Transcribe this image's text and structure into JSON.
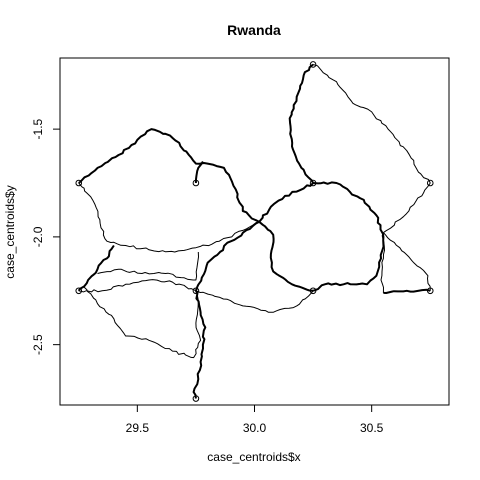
{
  "chart_data": {
    "type": "line",
    "title": "Rwanda",
    "xlabel": "case_centroids$x",
    "ylabel": "case_centroids$y",
    "xlim": [
      29.17,
      30.83
    ],
    "ylim": [
      -2.78,
      -1.17
    ],
    "x_ticks": [
      29.5,
      30.0,
      30.5
    ],
    "x_tick_labels": [
      "29.5",
      "30.0",
      "30.5"
    ],
    "y_ticks": [
      -1.5,
      -2.0,
      -2.5
    ],
    "y_tick_labels": [
      "-1.5",
      "-2.0",
      "-2.5"
    ],
    "grid": false,
    "legend": "none",
    "points": [
      {
        "x": 29.25,
        "y": -1.75
      },
      {
        "x": 29.75,
        "y": -1.75
      },
      {
        "x": 30.25,
        "y": -1.2
      },
      {
        "x": 30.25,
        "y": -1.75
      },
      {
        "x": 30.75,
        "y": -1.75
      },
      {
        "x": 29.25,
        "y": -2.25
      },
      {
        "x": 29.75,
        "y": -2.25
      },
      {
        "x": 30.25,
        "y": -2.25
      },
      {
        "x": 30.75,
        "y": -2.25
      },
      {
        "x": 29.75,
        "y": -2.75
      }
    ],
    "series": [
      {
        "path": [
          [
            29.25,
            -1.75
          ],
          [
            29.33,
            -1.68
          ],
          [
            29.42,
            -1.62
          ],
          [
            29.5,
            -1.55
          ],
          [
            29.56,
            -1.5
          ],
          [
            29.64,
            -1.53
          ],
          [
            29.72,
            -1.62
          ],
          [
            29.75,
            -1.66
          ],
          [
            29.8,
            -1.66
          ],
          [
            29.87,
            -1.68
          ],
          [
            29.92,
            -1.78
          ],
          [
            29.95,
            -1.88
          ],
          [
            30.02,
            -1.93
          ]
        ],
        "bold": true
      },
      {
        "path": [
          [
            29.25,
            -1.75
          ],
          [
            29.31,
            -1.83
          ],
          [
            29.34,
            -1.92
          ],
          [
            29.37,
            -2.02
          ],
          [
            29.45,
            -2.04
          ],
          [
            29.55,
            -2.06
          ],
          [
            29.66,
            -2.07
          ],
          [
            29.75,
            -2.05
          ],
          [
            29.85,
            -2.02
          ],
          [
            29.95,
            -1.97
          ],
          [
            30.02,
            -1.93
          ]
        ],
        "bold": false
      },
      {
        "path": [
          [
            29.75,
            -1.75
          ],
          [
            29.76,
            -1.68
          ],
          [
            29.78,
            -1.65
          ]
        ],
        "bold": true
      },
      {
        "path": [
          [
            29.25,
            -2.25
          ],
          [
            29.29,
            -2.2
          ],
          [
            29.33,
            -2.15
          ],
          [
            29.37,
            -2.1
          ],
          [
            29.4,
            -2.04
          ]
        ],
        "bold": true
      },
      {
        "path": [
          [
            29.33,
            -2.17
          ],
          [
            29.42,
            -2.15
          ],
          [
            29.52,
            -2.17
          ],
          [
            29.62,
            -2.17
          ],
          [
            29.7,
            -2.19
          ],
          [
            29.75,
            -2.2
          ],
          [
            29.76,
            -2.07
          ]
        ],
        "bold": false
      },
      {
        "path": [
          [
            29.25,
            -2.25
          ],
          [
            29.35,
            -2.25
          ],
          [
            29.45,
            -2.22
          ],
          [
            29.55,
            -2.2
          ],
          [
            29.65,
            -2.21
          ],
          [
            29.75,
            -2.25
          ]
        ],
        "bold": false
      },
      {
        "path": [
          [
            29.27,
            -2.23
          ],
          [
            29.33,
            -2.31
          ],
          [
            29.4,
            -2.38
          ],
          [
            29.45,
            -2.46
          ],
          [
            29.55,
            -2.48
          ],
          [
            29.65,
            -2.53
          ],
          [
            29.74,
            -2.56
          ],
          [
            29.77,
            -2.48
          ],
          [
            29.75,
            -2.4
          ],
          [
            29.76,
            -2.3
          ],
          [
            29.75,
            -2.25
          ]
        ],
        "bold": false
      },
      {
        "path": [
          [
            29.75,
            -2.25
          ],
          [
            29.77,
            -2.35
          ],
          [
            29.79,
            -2.42
          ],
          [
            29.78,
            -2.5
          ],
          [
            29.77,
            -2.58
          ],
          [
            29.76,
            -2.66
          ],
          [
            29.74,
            -2.72
          ],
          [
            29.75,
            -2.75
          ]
        ],
        "bold": true
      },
      {
        "path": [
          [
            29.75,
            -2.25
          ],
          [
            29.8,
            -2.12
          ],
          [
            29.9,
            -2.02
          ],
          [
            30.02,
            -1.93
          ]
        ],
        "bold": true
      },
      {
        "path": [
          [
            29.75,
            -2.25
          ],
          [
            29.85,
            -2.28
          ],
          [
            29.95,
            -2.32
          ],
          [
            30.08,
            -2.35
          ],
          [
            30.18,
            -2.32
          ],
          [
            30.25,
            -2.25
          ]
        ],
        "bold": false
      },
      {
        "path": [
          [
            30.02,
            -1.93
          ],
          [
            30.07,
            -1.86
          ],
          [
            30.13,
            -1.81
          ],
          [
            30.18,
            -1.79
          ],
          [
            30.25,
            -1.75
          ]
        ],
        "bold": true
      },
      {
        "path": [
          [
            30.02,
            -1.93
          ],
          [
            30.08,
            -1.99
          ],
          [
            30.07,
            -2.08
          ],
          [
            30.08,
            -2.16
          ],
          [
            30.16,
            -2.22
          ],
          [
            30.25,
            -2.25
          ]
        ],
        "bold": true
      },
      {
        "path": [
          [
            30.25,
            -1.75
          ],
          [
            30.35,
            -1.75
          ],
          [
            30.45,
            -1.82
          ],
          [
            30.52,
            -1.9
          ],
          [
            30.55,
            -2.0
          ],
          [
            30.54,
            -2.1
          ],
          [
            30.52,
            -2.18
          ],
          [
            30.48,
            -2.22
          ],
          [
            30.38,
            -2.22
          ],
          [
            30.3,
            -2.22
          ],
          [
            30.25,
            -2.25
          ]
        ],
        "bold": true
      },
      {
        "path": [
          [
            30.25,
            -1.75
          ],
          [
            30.2,
            -1.68
          ],
          [
            30.16,
            -1.58
          ],
          [
            30.15,
            -1.45
          ],
          [
            30.18,
            -1.35
          ],
          [
            30.21,
            -1.25
          ],
          [
            30.25,
            -1.2
          ]
        ],
        "bold": true
      },
      {
        "path": [
          [
            30.25,
            -1.2
          ],
          [
            30.35,
            -1.28
          ],
          [
            30.42,
            -1.38
          ],
          [
            30.5,
            -1.42
          ],
          [
            30.57,
            -1.5
          ],
          [
            30.65,
            -1.6
          ],
          [
            30.7,
            -1.7
          ],
          [
            30.75,
            -1.75
          ]
        ],
        "bold": false
      },
      {
        "path": [
          [
            30.75,
            -1.75
          ],
          [
            30.68,
            -1.85
          ],
          [
            30.62,
            -1.92
          ],
          [
            30.55,
            -1.98
          ]
        ],
        "bold": false
      },
      {
        "path": [
          [
            30.55,
            -1.98
          ],
          [
            30.62,
            -2.05
          ],
          [
            30.68,
            -2.12
          ],
          [
            30.74,
            -2.18
          ],
          [
            30.75,
            -2.25
          ]
        ],
        "bold": false
      },
      {
        "path": [
          [
            30.55,
            -1.98
          ],
          [
            30.55,
            -2.1
          ],
          [
            30.54,
            -2.2
          ],
          [
            30.55,
            -2.26
          ]
        ],
        "bold": false
      },
      {
        "path": [
          [
            30.55,
            -2.26
          ],
          [
            30.65,
            -2.25
          ],
          [
            30.75,
            -2.25
          ]
        ],
        "bold": true
      }
    ]
  }
}
